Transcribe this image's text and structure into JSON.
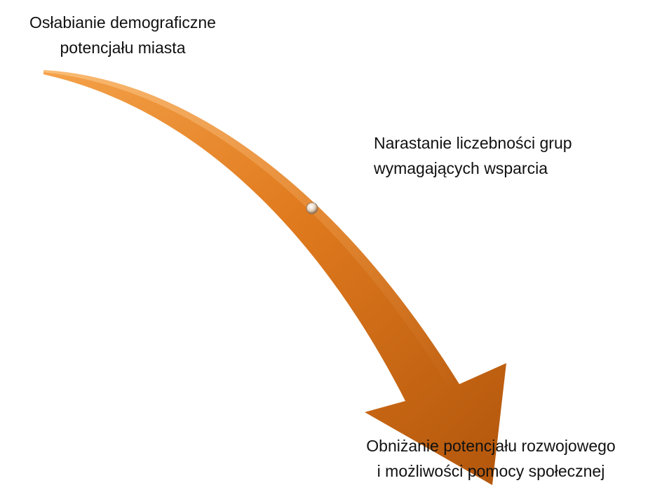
{
  "labels": [
    {
      "lines": [
        "Osłabianie demograficzne",
        "potencjału miasta"
      ]
    },
    {
      "lines": [
        "Narastanie liczebności grup",
        "wymagających wsparcia"
      ]
    },
    {
      "lines": [
        "Obniżanie potencjału rozwojowego",
        "i możliwości pomocy społecznej"
      ]
    }
  ]
}
